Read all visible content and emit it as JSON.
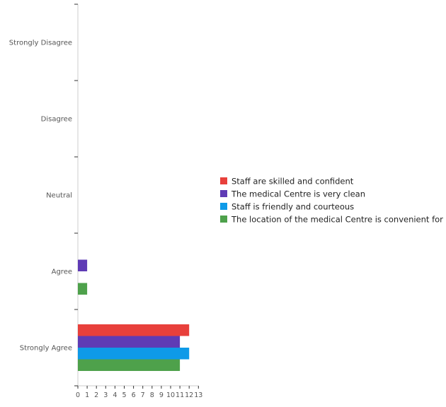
{
  "chart_data": {
    "type": "bar",
    "orientation": "horizontal",
    "categories": [
      "Strongly Disagree",
      "Disagree",
      "Neutral",
      "Agree",
      "Strongly Agree"
    ],
    "series": [
      {
        "name": "Staff are skilled and confident",
        "color": "#e8403b",
        "values": [
          0,
          0,
          0,
          0,
          12
        ]
      },
      {
        "name": "The medical Centre is very clean",
        "color": "#5f3bb5",
        "values": [
          0,
          0,
          0,
          1,
          11
        ]
      },
      {
        "name": "Staff is friendly and courteous",
        "color": "#0e9ae8",
        "values": [
          0,
          0,
          0,
          0,
          12
        ]
      },
      {
        "name": "The location of the medical Centre is convenient for me",
        "color": "#4ea14b",
        "values": [
          0,
          0,
          0,
          1,
          11
        ]
      }
    ],
    "xlim": [
      0,
      13
    ],
    "xticks": [
      0,
      1,
      2,
      3,
      4,
      5,
      6,
      7,
      8,
      9,
      10,
      11,
      12,
      13
    ],
    "legend_position": "right",
    "grid": false
  }
}
